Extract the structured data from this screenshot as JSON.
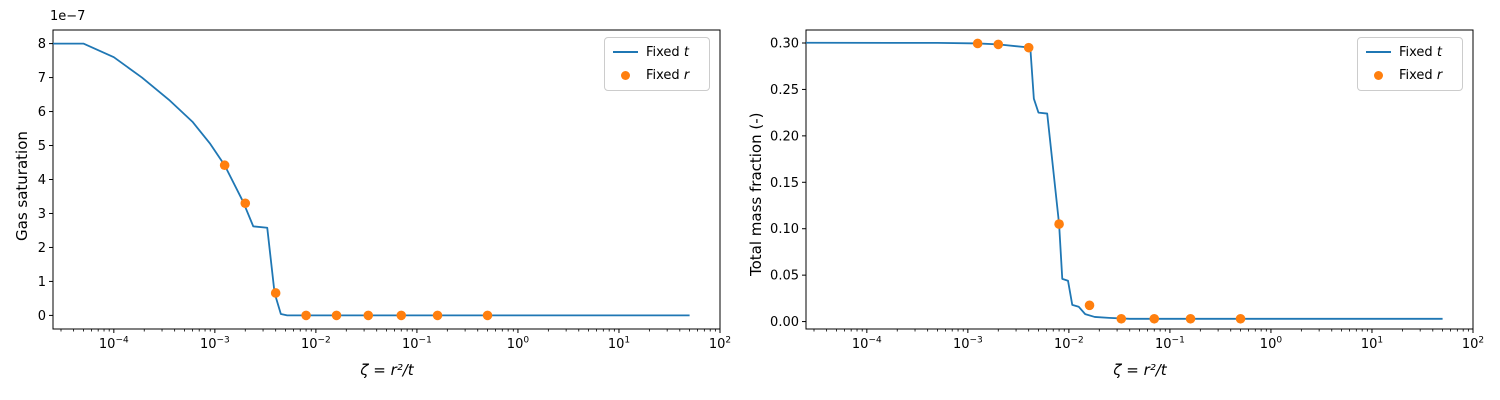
{
  "figure": {
    "background": "#ffffff",
    "axis_color": "#000000"
  },
  "legend": {
    "position": "upper right",
    "items": [
      {
        "label": "Fixed t",
        "marker": "line",
        "color": "#1f77b4"
      },
      {
        "label": "Fixed r",
        "marker": "dot",
        "color": "#ff7f0e"
      }
    ]
  },
  "chart_data": [
    {
      "type": "line",
      "title": "",
      "xlabel": "ζ = r²/t",
      "ylabel": "Gas saturation",
      "x_scale": "log",
      "xlim": [
        2.5e-05,
        100
      ],
      "ylim": [
        -4e-08,
        8.4e-07
      ],
      "x_tick_exponents": [
        -4,
        -3,
        -2,
        -1,
        0,
        1,
        2
      ],
      "y_ticks": {
        "values": [
          0,
          1e-07,
          2e-07,
          3e-07,
          4e-07,
          5e-07,
          6e-07,
          7e-07,
          8e-07
        ],
        "labels": [
          "0",
          "1",
          "2",
          "3",
          "4",
          "5",
          "6",
          "7",
          "8"
        ]
      },
      "y_offset_text": "1e−7",
      "grid": false,
      "legend_entries": [
        "Fixed t",
        "Fixed r"
      ],
      "series": [
        {
          "name": "Fixed t",
          "type": "line",
          "color": "#1f77b4",
          "points": [
            [
              2.5e-05,
              8e-07
            ],
            [
              5e-05,
              8e-07
            ],
            [
              0.0001,
              7.6e-07
            ],
            [
              0.00019,
              7e-07
            ],
            [
              0.00035,
              6.35e-07
            ],
            [
              0.0006,
              5.7e-07
            ],
            [
              0.0009,
              5.05e-07
            ],
            [
              0.00125,
              4.42e-07
            ],
            [
              0.0019,
              3.35e-07
            ],
            [
              0.0024,
              2.62e-07
            ],
            [
              0.0033,
              2.58e-07
            ],
            [
              0.0039,
              6.6e-08
            ],
            [
              0.0045,
              4e-09
            ],
            [
              0.0052,
              0.0
            ],
            [
              50.0,
              0.0
            ]
          ]
        },
        {
          "name": "Fixed r",
          "type": "scatter",
          "color": "#ff7f0e",
          "points": [
            [
              0.00125,
              4.42e-07
            ],
            [
              0.002,
              3.3e-07
            ],
            [
              0.004,
              6.6e-08
            ],
            [
              0.008,
              0.0
            ],
            [
              0.016,
              0.0
            ],
            [
              0.033,
              0.0
            ],
            [
              0.07,
              0.0
            ],
            [
              0.16,
              0.0
            ],
            [
              0.5,
              0.0
            ]
          ]
        }
      ]
    },
    {
      "type": "line",
      "title": "",
      "xlabel": "ζ = r²/t",
      "ylabel": "Total mass fraction (-)",
      "x_scale": "log",
      "xlim": [
        2.5e-05,
        100
      ],
      "ylim": [
        -0.008,
        0.314
      ],
      "x_tick_exponents": [
        -4,
        -3,
        -2,
        -1,
        0,
        1,
        2
      ],
      "y_ticks": {
        "values": [
          0.0,
          0.05,
          0.1,
          0.15,
          0.2,
          0.25,
          0.3
        ],
        "labels": [
          "0.00",
          "0.05",
          "0.10",
          "0.15",
          "0.20",
          "0.25",
          "0.30"
        ]
      },
      "y_offset_text": "",
      "grid": false,
      "legend_entries": [
        "Fixed t",
        "Fixed r"
      ],
      "series": [
        {
          "name": "Fixed t",
          "type": "line",
          "color": "#1f77b4",
          "points": [
            [
              2.5e-05,
              0.3003
            ],
            [
              0.0005,
              0.3001
            ],
            [
              0.00125,
              0.2995
            ],
            [
              0.002,
              0.2985
            ],
            [
              0.00415,
              0.295
            ],
            [
              0.0045,
              0.24
            ],
            [
              0.005,
              0.225
            ],
            [
              0.0061,
              0.224
            ],
            [
              0.008,
              0.105
            ],
            [
              0.0086,
              0.046
            ],
            [
              0.0098,
              0.044
            ],
            [
              0.0108,
              0.018
            ],
            [
              0.0125,
              0.016
            ],
            [
              0.0145,
              0.008
            ],
            [
              0.018,
              0.005
            ],
            [
              0.025,
              0.004
            ],
            [
              0.04,
              0.003
            ],
            [
              50.0,
              0.003
            ]
          ]
        },
        {
          "name": "Fixed r",
          "type": "scatter",
          "color": "#ff7f0e",
          "points": [
            [
              0.00125,
              0.2995
            ],
            [
              0.002,
              0.2985
            ],
            [
              0.004,
              0.295
            ],
            [
              0.008,
              0.105
            ],
            [
              0.016,
              0.0175
            ],
            [
              0.033,
              0.003
            ],
            [
              0.07,
              0.003
            ],
            [
              0.16,
              0.003
            ],
            [
              0.5,
              0.003
            ]
          ]
        }
      ]
    }
  ]
}
